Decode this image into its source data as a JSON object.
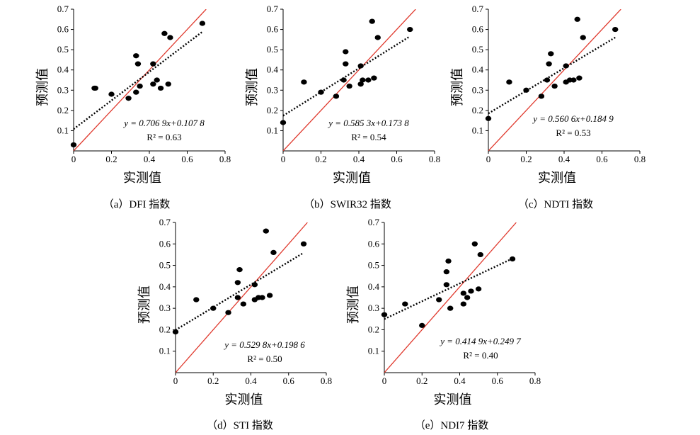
{
  "colors": {
    "axis": "#000000",
    "identity_line": "#e03a2e",
    "fit_line": "#000000",
    "points": "#000000"
  },
  "chart_data": [
    {
      "type": "scatter",
      "caption": "（a）DFI 指数",
      "xlabel": "实测值",
      "ylabel": "预测值",
      "xlim": [
        0,
        0.8
      ],
      "ylim": [
        0,
        0.7
      ],
      "xticks": [
        "0",
        "0.2",
        "0.4",
        "0.6",
        "0.8"
      ],
      "yticks": [
        "0.1",
        "0.2",
        "0.3",
        "0.4",
        "0.5",
        "0.6",
        "0.7"
      ],
      "equation": "y = 0.706 9x+0.107 8",
      "r2": "R² = 0.63",
      "fit": {
        "slope": 0.7069,
        "intercept": 0.1078
      },
      "points": [
        [
          0,
          0.03
        ],
        [
          0.11,
          0.31
        ],
        [
          0.115,
          0.31
        ],
        [
          0.2,
          0.28
        ],
        [
          0.29,
          0.26
        ],
        [
          0.33,
          0.29
        ],
        [
          0.33,
          0.47
        ],
        [
          0.34,
          0.43
        ],
        [
          0.35,
          0.32
        ],
        [
          0.42,
          0.33
        ],
        [
          0.42,
          0.43
        ],
        [
          0.44,
          0.35
        ],
        [
          0.46,
          0.31
        ],
        [
          0.48,
          0.58
        ],
        [
          0.5,
          0.33
        ],
        [
          0.51,
          0.56
        ],
        [
          0.68,
          0.63
        ]
      ]
    },
    {
      "type": "scatter",
      "caption": "（b）SWIR32 指数",
      "xlabel": "实测值",
      "ylabel": "预测值",
      "xlim": [
        0,
        0.8
      ],
      "ylim": [
        0,
        0.7
      ],
      "xticks": [
        "0",
        "0.2",
        "0.4",
        "0.6",
        "0.8"
      ],
      "yticks": [
        "0.1",
        "0.2",
        "0.3",
        "0.4",
        "0.5",
        "0.6",
        "0.7"
      ],
      "equation": "y = 0.585 3x+0.173 8",
      "r2": "R² = 0.54",
      "fit": {
        "slope": 0.5853,
        "intercept": 0.1738
      },
      "points": [
        [
          0,
          0.14
        ],
        [
          0.11,
          0.34
        ],
        [
          0.2,
          0.29
        ],
        [
          0.28,
          0.27
        ],
        [
          0.32,
          0.35
        ],
        [
          0.33,
          0.43
        ],
        [
          0.33,
          0.49
        ],
        [
          0.35,
          0.32
        ],
        [
          0.41,
          0.42
        ],
        [
          0.41,
          0.33
        ],
        [
          0.42,
          0.35
        ],
        [
          0.45,
          0.35
        ],
        [
          0.47,
          0.64
        ],
        [
          0.48,
          0.36
        ],
        [
          0.5,
          0.56
        ],
        [
          0.67,
          0.6
        ]
      ]
    },
    {
      "type": "scatter",
      "caption": "（c）NDTI 指数",
      "xlabel": "实测值",
      "ylabel": "预测值",
      "xlim": [
        0,
        0.8
      ],
      "ylim": [
        0,
        0.7
      ],
      "xticks": [
        "0",
        "0.2",
        "0.4",
        "0.6",
        "0.8"
      ],
      "yticks": [
        "0.1",
        "0.2",
        "0.3",
        "0.4",
        "0.5",
        "0.6",
        "0.7"
      ],
      "equation": "y = 0.560 6x+0.184 9",
      "r2": "R² = 0.53",
      "fit": {
        "slope": 0.5606,
        "intercept": 0.1849
      },
      "points": [
        [
          0,
          0.16
        ],
        [
          0.11,
          0.34
        ],
        [
          0.2,
          0.3
        ],
        [
          0.28,
          0.27
        ],
        [
          0.31,
          0.35
        ],
        [
          0.32,
          0.43
        ],
        [
          0.33,
          0.48
        ],
        [
          0.35,
          0.32
        ],
        [
          0.41,
          0.34
        ],
        [
          0.41,
          0.42
        ],
        [
          0.43,
          0.35
        ],
        [
          0.45,
          0.35
        ],
        [
          0.47,
          0.65
        ],
        [
          0.48,
          0.36
        ],
        [
          0.5,
          0.56
        ],
        [
          0.67,
          0.6
        ]
      ]
    },
    {
      "type": "scatter",
      "caption": "（d）STI 指数",
      "xlabel": "实测值",
      "ylabel": "预测值",
      "xlim": [
        0,
        0.8
      ],
      "ylim": [
        0,
        0.7
      ],
      "xticks": [
        "0",
        "0.2",
        "0.4",
        "0.6",
        "0.8"
      ],
      "yticks": [
        "0.1",
        "0.2",
        "0.3",
        "0.4",
        "0.5",
        "0.6",
        "0.7"
      ],
      "equation": "y = 0.529 8x+0.198 6",
      "r2": "R² = 0.50",
      "fit": {
        "slope": 0.5298,
        "intercept": 0.1986
      },
      "points": [
        [
          0,
          0.19
        ],
        [
          0.11,
          0.34
        ],
        [
          0.2,
          0.3
        ],
        [
          0.28,
          0.28
        ],
        [
          0.33,
          0.35
        ],
        [
          0.33,
          0.42
        ],
        [
          0.34,
          0.48
        ],
        [
          0.36,
          0.32
        ],
        [
          0.42,
          0.41
        ],
        [
          0.42,
          0.34
        ],
        [
          0.44,
          0.35
        ],
        [
          0.46,
          0.35
        ],
        [
          0.48,
          0.66
        ],
        [
          0.5,
          0.36
        ],
        [
          0.52,
          0.56
        ],
        [
          0.68,
          0.6
        ]
      ]
    },
    {
      "type": "scatter",
      "caption": "（e）NDI7 指数",
      "xlabel": "实测值",
      "ylabel": "预测值",
      "xlim": [
        0,
        0.8
      ],
      "ylim": [
        0,
        0.7
      ],
      "xticks": [
        "0",
        "0.2",
        "0.4",
        "0.6",
        "0.8"
      ],
      "yticks": [
        "0.1",
        "0.2",
        "0.3",
        "0.4",
        "0.5",
        "0.6",
        "0.7"
      ],
      "equation": "y = 0.414 9x+0.249 7",
      "r2": "R² = 0.40",
      "fit": {
        "slope": 0.4149,
        "intercept": 0.2497
      },
      "points": [
        [
          0,
          0.27
        ],
        [
          0.11,
          0.32
        ],
        [
          0.2,
          0.22
        ],
        [
          0.29,
          0.34
        ],
        [
          0.33,
          0.41
        ],
        [
          0.33,
          0.47
        ],
        [
          0.34,
          0.52
        ],
        [
          0.35,
          0.3
        ],
        [
          0.42,
          0.32
        ],
        [
          0.42,
          0.37
        ],
        [
          0.44,
          0.35
        ],
        [
          0.46,
          0.38
        ],
        [
          0.48,
          0.6
        ],
        [
          0.5,
          0.39
        ],
        [
          0.51,
          0.55
        ],
        [
          0.68,
          0.53
        ]
      ]
    }
  ]
}
